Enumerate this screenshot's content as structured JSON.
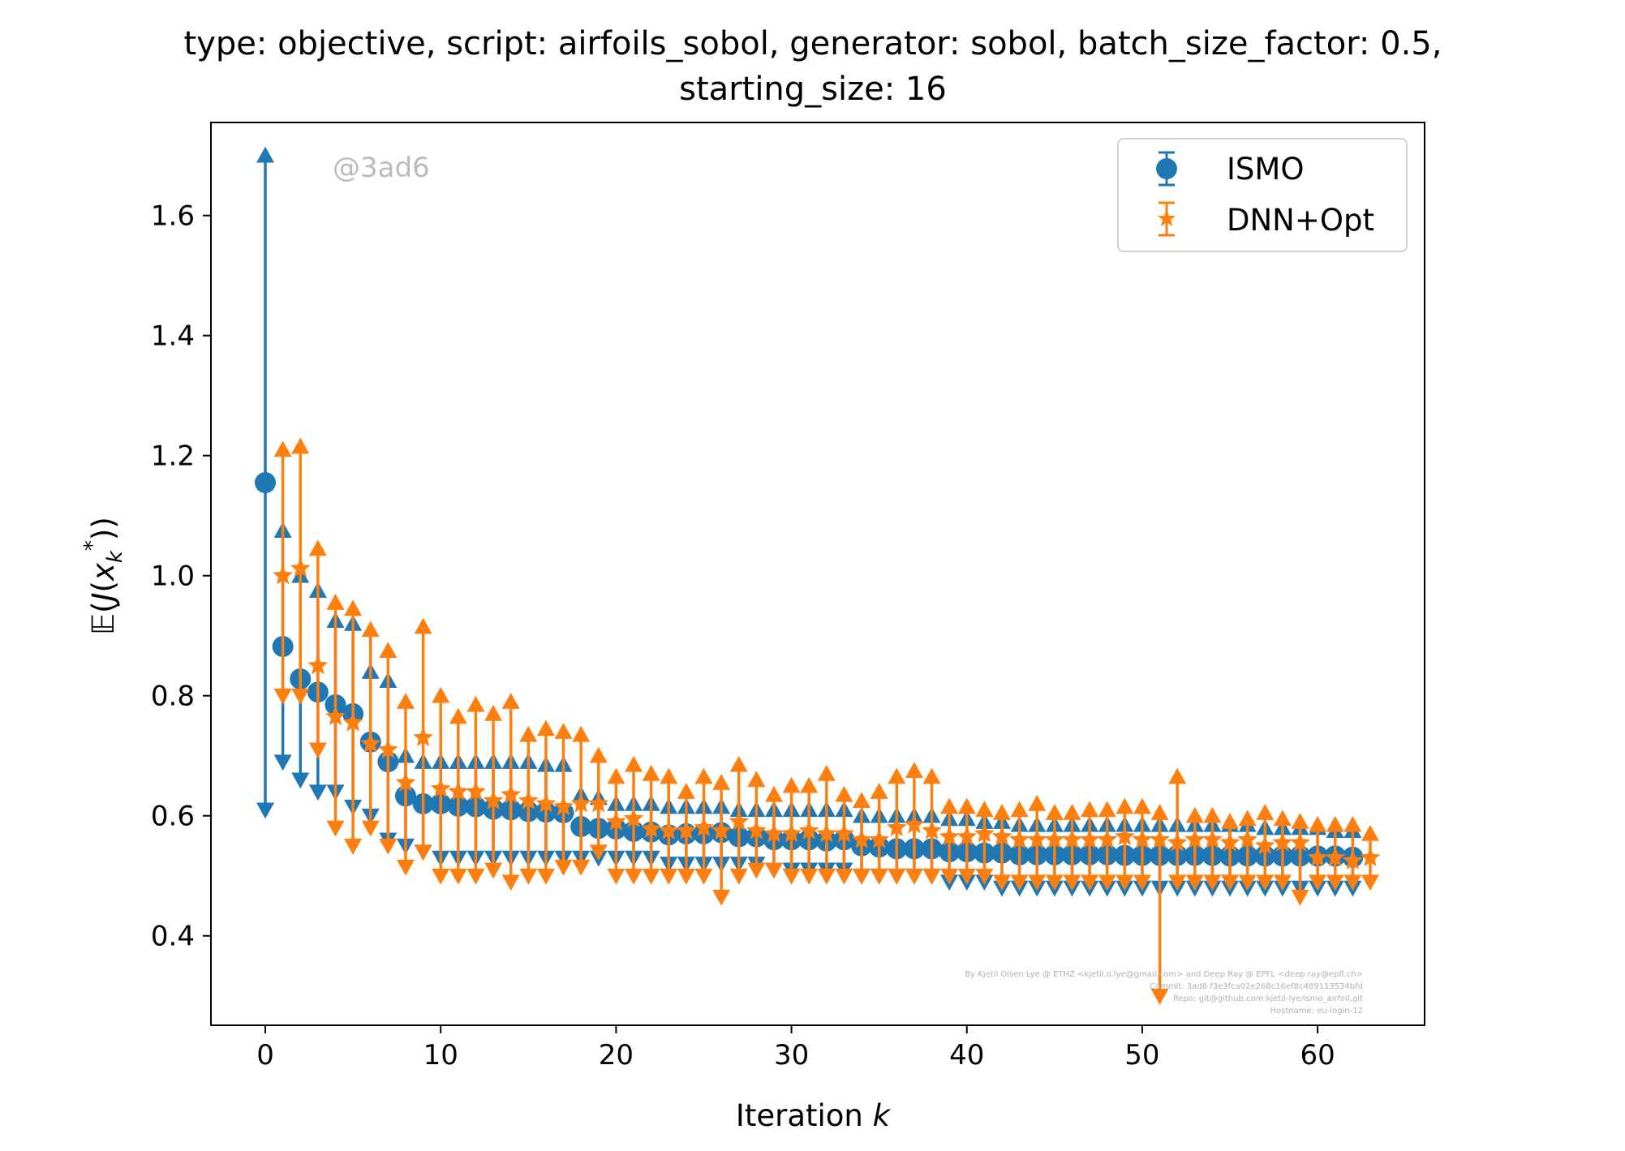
{
  "chart_data": {
    "type": "scatter",
    "title_line1": "type: objective, script: airfoils_sobol, generator: sobol, batch_size_factor: 0.5,",
    "title_line2": "starting_size: 16",
    "xlabel_text": "Iteration ",
    "xlabel_var": "k",
    "ylabel": "𝔼(J(x_k*))",
    "watermark": "@3ad6",
    "footer_lines": [
      "By Kjetil Olsen Lye @ ETHZ <kjetil.o.lye@gmail.com> and Deep Ray @ EPFL <deep.ray@epfl.ch>",
      "Commit: 3ad6 f3e3fca02e268c16ef8c489113534bfd",
      "Repo: git@github.com:kjetil-lye/ismo_airfoil.git",
      "Hostname: eu-login-12"
    ],
    "xlim": [
      -3.1,
      66.1
    ],
    "ylim": [
      0.251,
      1.755
    ],
    "xticks": [
      "0",
      "10",
      "20",
      "30",
      "40",
      "50",
      "60"
    ],
    "yticks": [
      "0.4",
      "0.6",
      "0.8",
      "1.0",
      "1.2",
      "1.4",
      "1.6"
    ],
    "grid": false,
    "legend_position": "top-right",
    "series": [
      {
        "name": "ISMO",
        "color": "#1f77b4",
        "marker": "circle",
        "x": [
          0,
          1,
          2,
          3,
          4,
          5,
          6,
          7,
          8,
          9,
          10,
          11,
          12,
          13,
          14,
          15,
          16,
          17,
          18,
          19,
          20,
          21,
          22,
          23,
          24,
          25,
          26,
          27,
          28,
          29,
          30,
          31,
          32,
          33,
          34,
          35,
          36,
          37,
          38,
          39,
          40,
          41,
          42,
          43,
          44,
          45,
          46,
          47,
          48,
          49,
          50,
          51,
          52,
          53,
          54,
          55,
          56,
          57,
          58,
          59,
          60,
          61,
          62
        ],
        "mean": [
          1.155,
          0.882,
          0.828,
          0.806,
          0.785,
          0.77,
          0.723,
          0.69,
          0.633,
          0.62,
          0.62,
          0.616,
          0.615,
          0.611,
          0.61,
          0.607,
          0.606,
          0.605,
          0.582,
          0.579,
          0.578,
          0.574,
          0.573,
          0.568,
          0.57,
          0.57,
          0.572,
          0.565,
          0.565,
          0.56,
          0.56,
          0.56,
          0.558,
          0.56,
          0.55,
          0.548,
          0.545,
          0.545,
          0.545,
          0.54,
          0.54,
          0.538,
          0.538,
          0.535,
          0.535,
          0.535,
          0.535,
          0.535,
          0.535,
          0.534,
          0.534,
          0.534,
          0.534,
          0.534,
          0.534,
          0.533,
          0.533,
          0.533,
          0.533,
          0.533,
          0.533,
          0.533,
          0.531
        ],
        "upper": [
          1.7,
          1.075,
          1.0,
          0.975,
          0.925,
          0.92,
          0.84,
          0.825,
          0.7,
          0.69,
          0.69,
          0.69,
          0.69,
          0.69,
          0.69,
          0.69,
          0.685,
          0.685,
          0.635,
          0.63,
          0.62,
          0.62,
          0.62,
          0.615,
          0.615,
          0.615,
          0.615,
          0.61,
          0.61,
          0.61,
          0.61,
          0.61,
          0.61,
          0.61,
          0.6,
          0.6,
          0.6,
          0.6,
          0.6,
          0.595,
          0.595,
          0.59,
          0.59,
          0.585,
          0.585,
          0.585,
          0.585,
          0.585,
          0.585,
          0.585,
          0.585,
          0.585,
          0.585,
          0.585,
          0.585,
          0.585,
          0.585,
          0.58,
          0.58,
          0.58,
          0.58,
          0.575,
          0.575
        ],
        "lower": [
          0.61,
          0.69,
          0.66,
          0.64,
          0.64,
          0.615,
          0.6,
          0.56,
          0.55,
          0.54,
          0.53,
          0.53,
          0.53,
          0.53,
          0.53,
          0.53,
          0.53,
          0.53,
          0.53,
          0.53,
          0.53,
          0.53,
          0.53,
          0.52,
          0.52,
          0.52,
          0.52,
          0.52,
          0.52,
          0.51,
          0.51,
          0.51,
          0.51,
          0.51,
          0.5,
          0.5,
          0.5,
          0.5,
          0.5,
          0.49,
          0.49,
          0.49,
          0.48,
          0.48,
          0.48,
          0.48,
          0.48,
          0.48,
          0.48,
          0.48,
          0.48,
          0.48,
          0.48,
          0.48,
          0.48,
          0.48,
          0.48,
          0.48,
          0.48,
          0.48,
          0.48,
          0.48,
          0.48
        ]
      },
      {
        "name": "DNN+Opt",
        "color": "#ff7f0e",
        "marker": "star",
        "x": [
          1,
          2,
          3,
          4,
          5,
          6,
          7,
          8,
          9,
          10,
          11,
          12,
          13,
          14,
          15,
          16,
          17,
          18,
          19,
          20,
          21,
          22,
          23,
          24,
          25,
          26,
          27,
          28,
          29,
          30,
          31,
          32,
          33,
          34,
          35,
          36,
          37,
          38,
          39,
          40,
          41,
          42,
          43,
          44,
          45,
          46,
          47,
          48,
          49,
          50,
          51,
          52,
          53,
          54,
          55,
          56,
          57,
          58,
          59,
          60,
          61,
          62,
          63
        ],
        "mean": [
          1.0,
          1.012,
          0.85,
          0.765,
          0.755,
          0.72,
          0.71,
          0.655,
          0.73,
          0.645,
          0.64,
          0.64,
          0.625,
          0.635,
          0.625,
          0.62,
          0.615,
          0.62,
          0.62,
          0.59,
          0.595,
          0.578,
          0.575,
          0.575,
          0.58,
          0.575,
          0.59,
          0.575,
          0.57,
          0.57,
          0.575,
          0.57,
          0.57,
          0.56,
          0.56,
          0.58,
          0.585,
          0.575,
          0.565,
          0.565,
          0.57,
          0.565,
          0.56,
          0.56,
          0.56,
          0.56,
          0.56,
          0.56,
          0.565,
          0.56,
          0.56,
          0.555,
          0.56,
          0.56,
          0.555,
          0.56,
          0.55,
          0.555,
          0.555,
          0.53,
          0.53,
          0.525,
          0.53
        ],
        "upper": [
          1.21,
          1.215,
          1.045,
          0.955,
          0.945,
          0.91,
          0.875,
          0.79,
          0.915,
          0.8,
          0.765,
          0.785,
          0.77,
          0.79,
          0.735,
          0.745,
          0.74,
          0.735,
          0.7,
          0.665,
          0.685,
          0.67,
          0.665,
          0.64,
          0.665,
          0.655,
          0.685,
          0.66,
          0.635,
          0.65,
          0.65,
          0.67,
          0.635,
          0.625,
          0.64,
          0.665,
          0.675,
          0.665,
          0.615,
          0.615,
          0.61,
          0.605,
          0.61,
          0.62,
          0.605,
          0.605,
          0.61,
          0.61,
          0.615,
          0.615,
          0.605,
          0.665,
          0.6,
          0.6,
          0.59,
          0.595,
          0.605,
          0.595,
          0.59,
          0.585,
          0.585,
          0.585,
          0.57
        ],
        "lower": [
          0.8,
          0.8,
          0.71,
          0.58,
          0.55,
          0.58,
          0.55,
          0.515,
          0.54,
          0.5,
          0.5,
          0.5,
          0.51,
          0.49,
          0.5,
          0.5,
          0.515,
          0.515,
          0.54,
          0.5,
          0.5,
          0.5,
          0.5,
          0.5,
          0.5,
          0.465,
          0.5,
          0.51,
          0.51,
          0.5,
          0.5,
          0.5,
          0.5,
          0.5,
          0.5,
          0.5,
          0.5,
          0.5,
          0.5,
          0.5,
          0.5,
          0.49,
          0.49,
          0.49,
          0.49,
          0.49,
          0.49,
          0.49,
          0.49,
          0.49,
          0.3,
          0.49,
          0.49,
          0.49,
          0.49,
          0.49,
          0.49,
          0.49,
          0.465,
          0.49,
          0.49,
          0.49,
          0.49
        ]
      }
    ]
  }
}
